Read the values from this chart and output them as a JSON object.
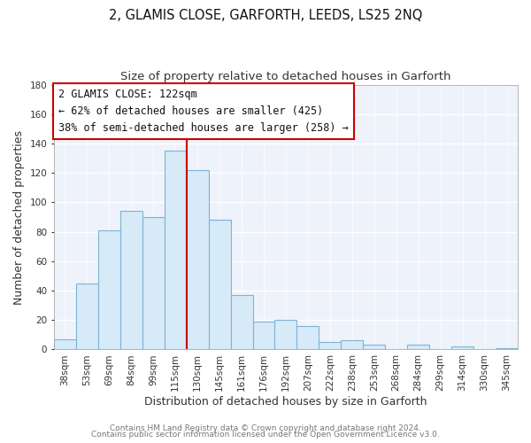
{
  "title": "2, GLAMIS CLOSE, GARFORTH, LEEDS, LS25 2NQ",
  "subtitle": "Size of property relative to detached houses in Garforth",
  "xlabel": "Distribution of detached houses by size in Garforth",
  "ylabel": "Number of detached properties",
  "bar_labels": [
    "38sqm",
    "53sqm",
    "69sqm",
    "84sqm",
    "99sqm",
    "115sqm",
    "130sqm",
    "145sqm",
    "161sqm",
    "176sqm",
    "192sqm",
    "207sqm",
    "222sqm",
    "238sqm",
    "253sqm",
    "268sqm",
    "284sqm",
    "299sqm",
    "314sqm",
    "330sqm",
    "345sqm"
  ],
  "bar_values": [
    7,
    45,
    81,
    94,
    90,
    135,
    122,
    88,
    37,
    19,
    20,
    16,
    5,
    6,
    3,
    0,
    3,
    0,
    2,
    0,
    1
  ],
  "bar_color": "#d6eaf8",
  "bar_edge_color": "#7fb3d3",
  "vline_x": 5.5,
  "vline_color": "#cc0000",
  "ylim": [
    0,
    180
  ],
  "yticks": [
    0,
    20,
    40,
    60,
    80,
    100,
    120,
    140,
    160,
    180
  ],
  "annotation_title": "2 GLAMIS CLOSE: 122sqm",
  "annotation_line1": "← 62% of detached houses are smaller (425)",
  "annotation_line2": "38% of semi-detached houses are larger (258) →",
  "footer1": "Contains HM Land Registry data © Crown copyright and database right 2024.",
  "footer2": "Contains public sector information licensed under the Open Government Licence v3.0.",
  "bg_color": "#ffffff",
  "plot_bg_color": "#eef2fb",
  "grid_color": "#ffffff",
  "title_fontsize": 10.5,
  "subtitle_fontsize": 9.5,
  "axis_label_fontsize": 9,
  "tick_fontsize": 7.5,
  "footer_fontsize": 6.5,
  "ann_fontsize": 8.5
}
